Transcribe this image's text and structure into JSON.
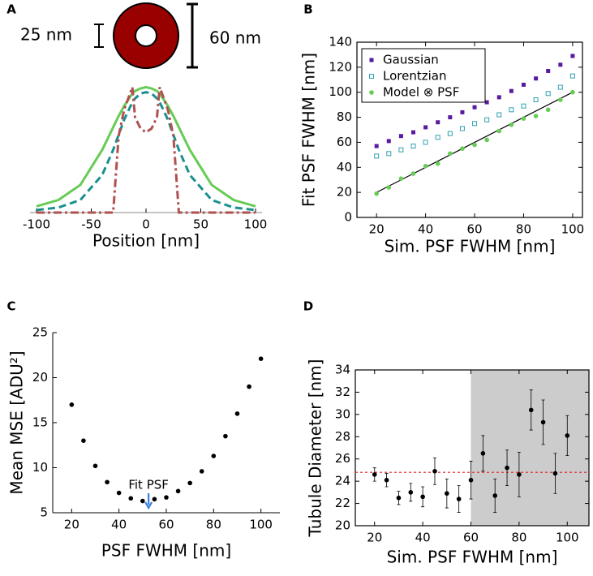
{
  "chart_data": [
    {
      "type": "line",
      "panel_label": "A",
      "xlabel": "Position [nm]",
      "diagram": {
        "inner_label": "25 nm",
        "outer_label": "60 nm"
      },
      "x": [
        -100,
        -80,
        -60,
        -40,
        -30,
        -25,
        -20,
        -12.5,
        -10,
        -5,
        0,
        5,
        10,
        12.5,
        20,
        25,
        30,
        40,
        60,
        80,
        100
      ],
      "series": [
        {
          "color": "#66cc55",
          "dash": "solid",
          "values": [
            0.05,
            0.1,
            0.22,
            0.5,
            0.68,
            0.77,
            0.85,
            0.95,
            0.97,
            0.99,
            1.0,
            0.99,
            0.97,
            0.95,
            0.85,
            0.77,
            0.68,
            0.5,
            0.22,
            0.1,
            0.05
          ]
        },
        {
          "color": "#1a8f8f",
          "dash": "dashed",
          "values": [
            0.02,
            0.04,
            0.1,
            0.3,
            0.5,
            0.62,
            0.74,
            0.88,
            0.91,
            0.95,
            0.96,
            0.95,
            0.91,
            0.88,
            0.74,
            0.62,
            0.5,
            0.3,
            0.1,
            0.04,
            0.02
          ]
        },
        {
          "color": "#b05050",
          "dash": "dashdot",
          "values": [
            0,
            0,
            0,
            0,
            0,
            0.61,
            0.82,
            1.0,
            0.76,
            0.67,
            0.64,
            0.67,
            0.76,
            1.0,
            0.82,
            0.61,
            0,
            0,
            0,
            0,
            0
          ]
        }
      ],
      "xlim": [
        -100,
        100
      ],
      "ylim": [
        0,
        1.1
      ],
      "xticks": [
        -100,
        -50,
        0,
        50,
        100
      ],
      "frame": "bottom"
    },
    {
      "type": "scatter",
      "panel_label": "B",
      "xlabel": "Sim. PSF FWHM [nm]",
      "ylabel": "Fit PSF FWHM [nm]",
      "x": [
        20,
        25,
        30,
        35,
        40,
        45,
        50,
        55,
        60,
        65,
        70,
        75,
        80,
        85,
        90,
        95,
        100
      ],
      "series": [
        {
          "name": "Gaussian",
          "color": "#5a1aa0",
          "marker": "square",
          "values": [
            57,
            61,
            65,
            68,
            72,
            76,
            80,
            84,
            88,
            92,
            96,
            101,
            106,
            111,
            117,
            122,
            129
          ]
        },
        {
          "name": "Lorentzian",
          "color": "#30a0b0",
          "marker": "square-open",
          "values": [
            49,
            51,
            54,
            57,
            60,
            64,
            67,
            71,
            75,
            78,
            82,
            86,
            89,
            94,
            99,
            104,
            113
          ]
        },
        {
          "name": "Model ⊗ PSF",
          "color": "#66cc55",
          "marker": "circle",
          "values": [
            19,
            24,
            31,
            35,
            41,
            43,
            51,
            55,
            58,
            62,
            69,
            74,
            79,
            81,
            86,
            94,
            100
          ]
        }
      ],
      "reference_line": {
        "x": [
          20,
          100
        ],
        "y": [
          20,
          100
        ],
        "color": "#000000"
      },
      "xlim": [
        12,
        104
      ],
      "ylim": [
        0,
        140
      ],
      "xticks": [
        20,
        40,
        60,
        80,
        100
      ],
      "yticks": [
        0,
        20,
        40,
        60,
        80,
        100,
        120,
        140
      ],
      "frame": "box",
      "legend": "upper-left"
    },
    {
      "type": "scatter",
      "panel_label": "C",
      "xlabel": "PSF FWHM [nm]",
      "ylabel": "Mean MSE [ADU²]",
      "x": [
        20,
        25,
        30,
        35,
        40,
        45,
        50,
        55,
        60,
        65,
        70,
        75,
        80,
        85,
        90,
        95,
        100
      ],
      "series": [
        {
          "color": "#000000",
          "marker": "circle",
          "values": [
            17.0,
            13.0,
            10.2,
            8.4,
            7.2,
            6.6,
            6.3,
            6.5,
            6.7,
            7.4,
            8.3,
            9.6,
            11.3,
            13.5,
            16.0,
            19.0,
            22.1
          ]
        }
      ],
      "annotation": {
        "text": "Fit PSF",
        "x": 52.5,
        "color": "#3a7fe0"
      },
      "xlim": [
        12,
        108
      ],
      "ylim": [
        5,
        25
      ],
      "xticks": [
        20,
        40,
        60,
        80,
        100
      ],
      "yticks": [
        5,
        10,
        15,
        20,
        25
      ],
      "frame": "left-bottom"
    },
    {
      "type": "errorbar",
      "panel_label": "D",
      "xlabel": "Sim. PSF FWHM [nm]",
      "ylabel": "Tubule Diameter [nm]",
      "x": [
        20,
        25,
        30,
        35,
        40,
        45,
        50,
        55,
        60,
        65,
        70,
        75,
        80,
        85,
        90,
        95,
        100
      ],
      "series": [
        {
          "color": "#000000",
          "values": [
            24.6,
            24.1,
            22.5,
            23.0,
            22.6,
            24.9,
            22.9,
            22.4,
            24.1,
            26.5,
            22.7,
            25.2,
            24.6,
            30.4,
            29.3,
            24.7,
            28.1
          ],
          "errors": [
            0.6,
            0.6,
            0.6,
            0.8,
            0.9,
            1.2,
            1.3,
            1.2,
            1.7,
            1.6,
            1.5,
            1.6,
            2.0,
            1.8,
            2.0,
            1.8,
            1.8
          ]
        }
      ],
      "hline": {
        "y": 24.8,
        "color": "#e02020"
      },
      "shade_x": [
        60,
        109
      ],
      "xlim": [
        12,
        109
      ],
      "ylim": [
        20,
        34
      ],
      "xticks": [
        20,
        40,
        60,
        80,
        100
      ],
      "yticks": [
        20,
        22,
        24,
        26,
        28,
        30,
        32,
        34
      ],
      "frame": "box"
    }
  ]
}
